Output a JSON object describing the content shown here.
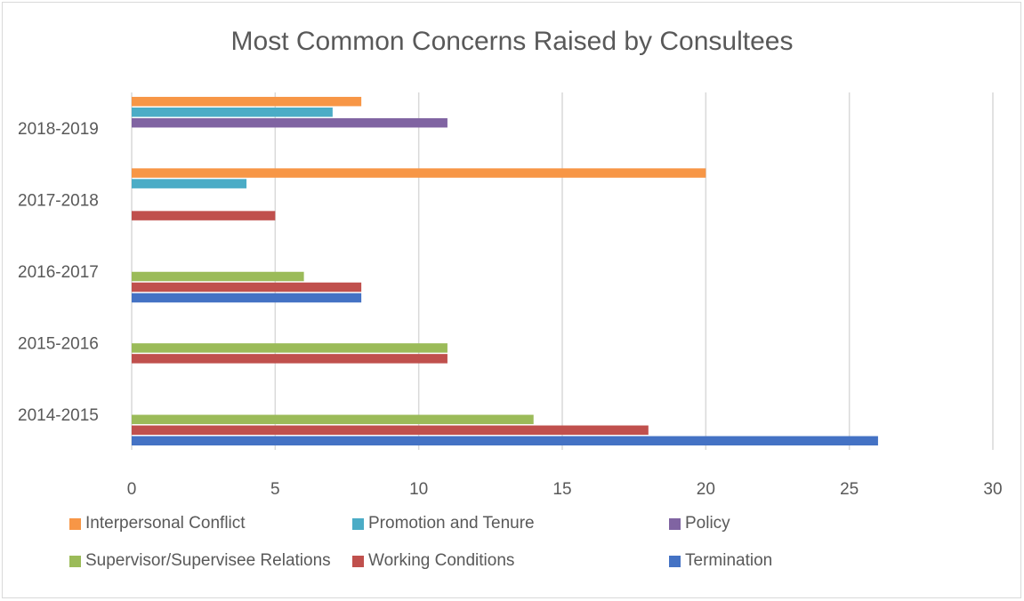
{
  "chart_data": {
    "type": "bar",
    "orientation": "horizontal",
    "title": "Most Common Concerns Raised by Consultees",
    "categories": [
      "2014-2015",
      "2015-2016",
      "2016-2017",
      "2017-2018",
      "2018-2019"
    ],
    "xlim": [
      0,
      30
    ],
    "xticks": [
      "0",
      "5",
      "10",
      "15",
      "20",
      "25",
      "30"
    ],
    "grid": "vertical",
    "legend_position": "bottom",
    "series": [
      {
        "name": "Termination",
        "color": "#4472c4",
        "values": [
          26,
          0,
          8,
          0,
          0
        ]
      },
      {
        "name": "Working Conditions",
        "color": "#c0504d",
        "values": [
          18,
          11,
          8,
          5,
          0
        ]
      },
      {
        "name": "Supervisor/Supervisee Relations",
        "color": "#9bbb59",
        "values": [
          14,
          11,
          6,
          0,
          0
        ]
      },
      {
        "name": "Policy",
        "color": "#8064a2",
        "values": [
          0,
          0,
          0,
          0,
          11
        ]
      },
      {
        "name": "Promotion and Tenure",
        "color": "#4bacc6",
        "values": [
          0,
          0,
          0,
          4,
          7
        ]
      },
      {
        "name": "Interpersonal Conflict",
        "color": "#f79646",
        "values": [
          0,
          0,
          0,
          20,
          8
        ]
      }
    ],
    "legend_order": [
      [
        "Interpersonal Conflict",
        "Promotion and Tenure",
        "Policy"
      ],
      [
        "Supervisor/Supervisee Relations",
        "Working Conditions",
        "Termination"
      ]
    ]
  }
}
